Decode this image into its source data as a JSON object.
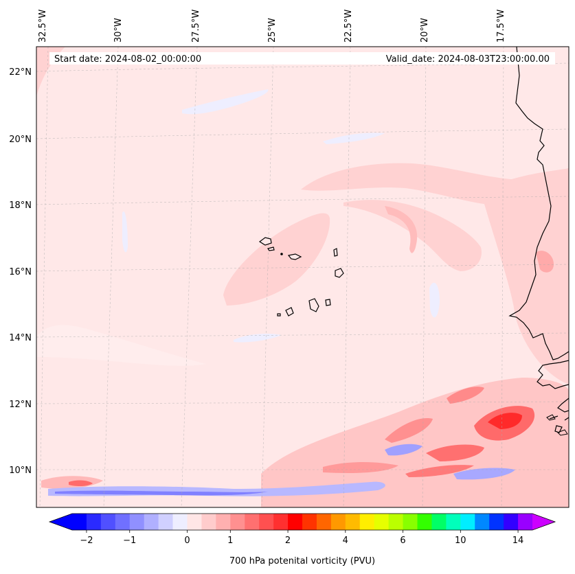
{
  "header": {
    "start_date": "Start date: 2024-08-02_00:00:00",
    "valid_date": "Valid_date: 2024-08-03T23:00:00.00"
  },
  "map": {
    "field": "700 hPa potenital vorticity (PVU)",
    "lon_labels": [
      "32.5°W",
      "30°W",
      "27.5°W",
      "25°W",
      "22.5°W",
      "20°W",
      "17.5°W"
    ],
    "lat_labels": [
      "22°N",
      "20°N",
      "18°N",
      "16°N",
      "14°N",
      "12°N",
      "10°N"
    ],
    "gridlines": true
  },
  "colorbar": {
    "label": "700 hPa potenital vorticity (PVU)",
    "tick_labels": [
      "−2",
      "−1",
      "0",
      "1",
      "2",
      "4",
      "6",
      "10",
      "14"
    ],
    "colors": [
      "#0000ff",
      "#2a2aff",
      "#5050ff",
      "#7070ff",
      "#9090ff",
      "#b0b0ff",
      "#d0d0ff",
      "#eeeeff",
      "#ffe6e6",
      "#ffcccc",
      "#ffb0b0",
      "#ff9090",
      "#ff7070",
      "#ff5050",
      "#ff3030",
      "#ff0000",
      "#ff3300",
      "#ff6600",
      "#ff9900",
      "#ffbb00",
      "#ffee00",
      "#e6ff00",
      "#bbff00",
      "#88ff00",
      "#33ff00",
      "#00ff66",
      "#00ffbb",
      "#00eeff",
      "#0088ff",
      "#0033ff",
      "#3300ff",
      "#9900ff"
    ],
    "under_color": "#0000ff",
    "over_color": "#cc00ff"
  }
}
